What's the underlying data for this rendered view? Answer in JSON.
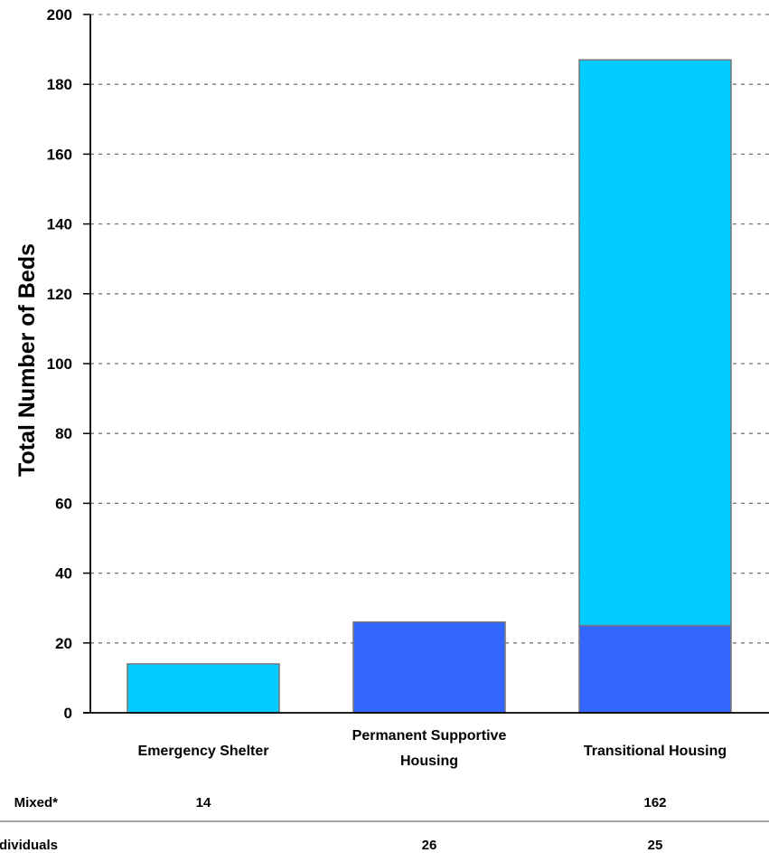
{
  "chart_data": {
    "type": "bar",
    "stacked": true,
    "title": "",
    "xlabel": "",
    "ylabel": "Total Number of Beds",
    "ylim": [
      0,
      200
    ],
    "yticks": [
      "0",
      "20",
      "40",
      "60",
      "80",
      "100",
      "120",
      "140",
      "160",
      "180",
      "200"
    ],
    "grid": true,
    "categories": [
      [
        "Emergency Shelter"
      ],
      [
        "Permanent Supportive",
        "Housing"
      ],
      [
        "Transitional Housing"
      ]
    ],
    "series": [
      {
        "name": "Individuals",
        "color": "#3366ff",
        "values": [
          0,
          26,
          25
        ],
        "labels": [
          "",
          "26",
          "25"
        ]
      },
      {
        "name": "Mixed*",
        "color": "#00ccff",
        "values": [
          14,
          0,
          162
        ],
        "labels": [
          "14",
          "",
          "162"
        ]
      }
    ],
    "table_rows": [
      {
        "label": "Mixed*",
        "series_index": 1
      },
      {
        "label": "Individuals",
        "series_index": 0
      }
    ]
  }
}
